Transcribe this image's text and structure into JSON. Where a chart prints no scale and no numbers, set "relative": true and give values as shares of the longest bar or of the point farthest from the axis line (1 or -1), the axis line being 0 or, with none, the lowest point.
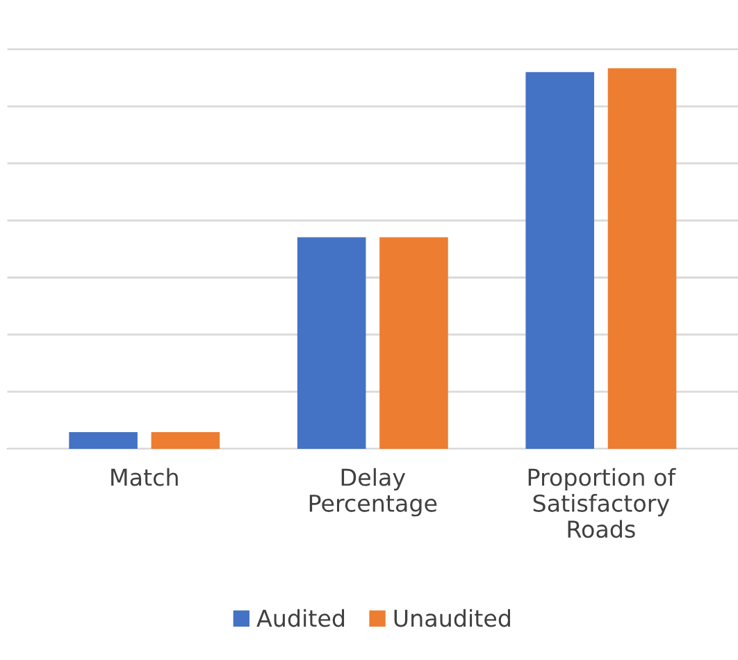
{
  "chart_data": {
    "type": "bar",
    "relative": true,
    "categories": [
      "Match",
      "Delay\nPercentage",
      "Proportion of\nSatisfactory\nRoads"
    ],
    "series": [
      {
        "name": "Audited",
        "color": "#4472c4",
        "values": [
          0.044,
          0.556,
          0.99
        ]
      },
      {
        "name": "Unaudited",
        "color": "#ed7d31",
        "values": [
          0.044,
          0.556,
          1
        ]
      }
    ],
    "grid": "y",
    "legend": "bottom"
  }
}
